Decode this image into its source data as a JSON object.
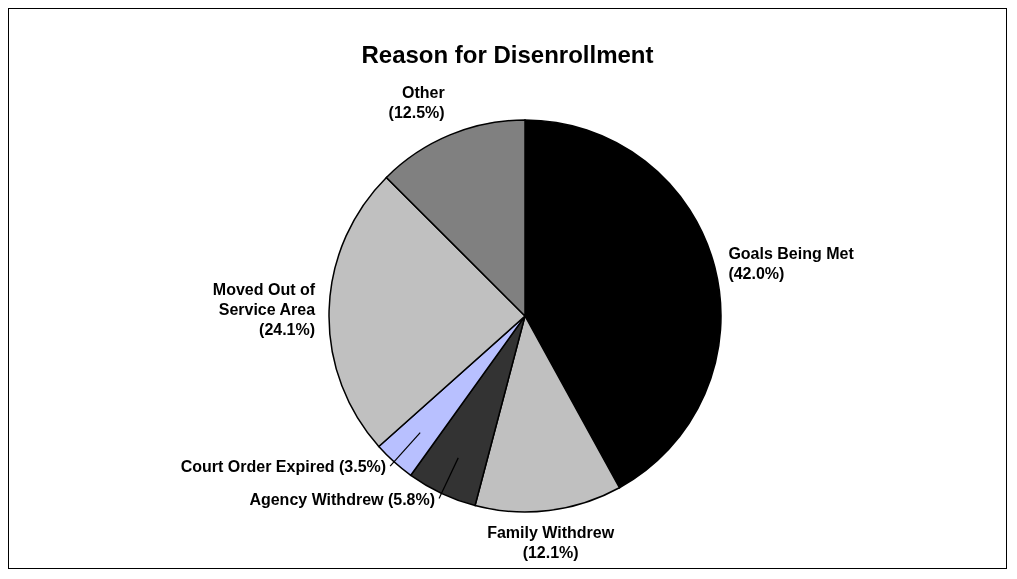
{
  "chart_data": {
    "type": "pie",
    "title": "Reason for Disenrollment",
    "categories": [
      "Goals Being Met",
      "Family Withdrew",
      "Agency Withdrew",
      "Court Order Expired",
      "Moved Out of Service Area",
      "Other"
    ],
    "values": [
      42.0,
      12.1,
      5.8,
      3.5,
      24.1,
      12.5
    ],
    "value_labels": [
      "(42.0%)",
      "(12.1%)",
      "(5.8%)",
      "(3.5%)",
      "(24.1%)",
      "(12.5%)"
    ],
    "colors": [
      "#000000",
      "#c0c0c0",
      "#333333",
      "#b8c0ff",
      "#c0c0c0",
      "#808080"
    ]
  }
}
